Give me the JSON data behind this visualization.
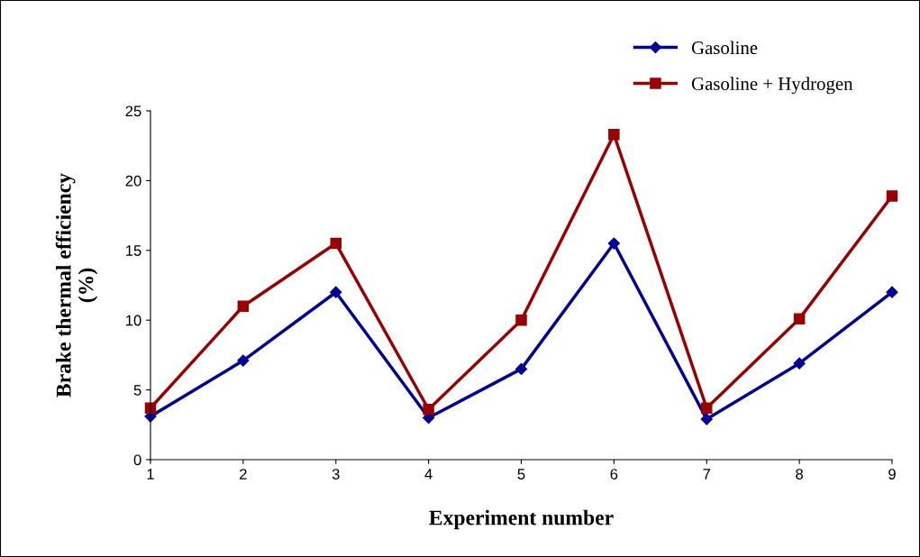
{
  "chart_data": {
    "type": "line",
    "xlabel": "Experiment number",
    "ylabel": "Brake thermal efficiency\n(%)",
    "x": [
      1,
      2,
      3,
      4,
      5,
      6,
      7,
      8,
      9
    ],
    "series": [
      {
        "name": "Gasoline",
        "color": "#000099",
        "marker": "diamond",
        "values": [
          3.1,
          7.1,
          12.0,
          3.0,
          6.5,
          15.5,
          2.9,
          6.9,
          12.0
        ]
      },
      {
        "name": "Gasoline + Hydrogen",
        "color": "#990000",
        "marker": "square",
        "values": [
          3.7,
          11.0,
          15.5,
          3.6,
          10.0,
          23.3,
          3.7,
          10.1,
          18.9
        ]
      }
    ],
    "xlim": [
      1,
      9
    ],
    "xticks": [
      1,
      2,
      3,
      4,
      5,
      6,
      7,
      8,
      9
    ],
    "ylim": [
      0,
      25
    ],
    "yticks": [
      0,
      5,
      10,
      15,
      20,
      25
    ],
    "grid": false,
    "legend": "top right",
    "line_style": "solid"
  }
}
